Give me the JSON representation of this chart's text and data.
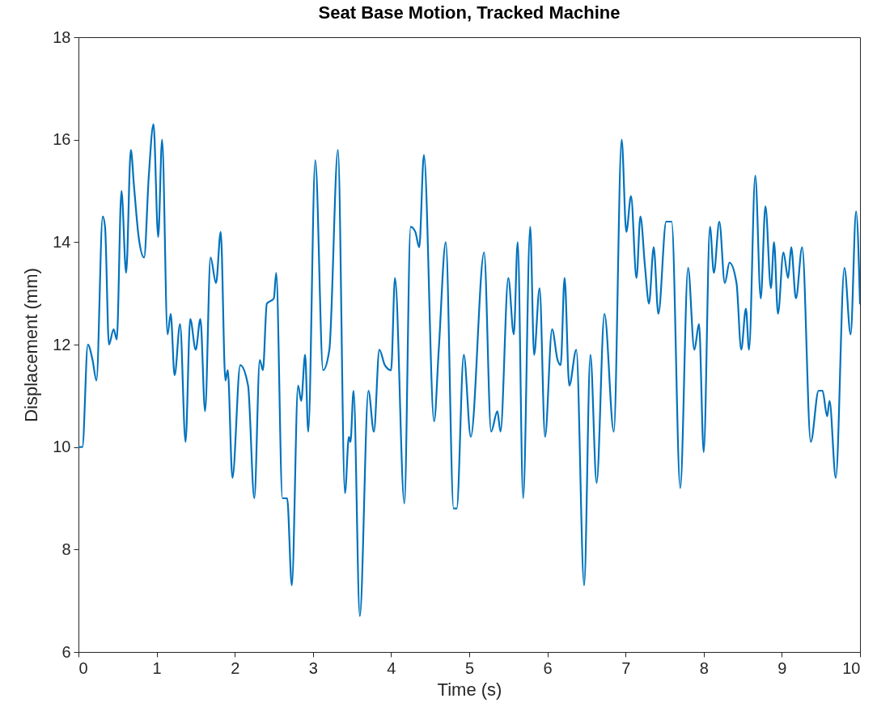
{
  "chart_data": {
    "type": "line",
    "title": "Seat Base Motion, Tracked Machine",
    "xlabel": "Time (s)",
    "ylabel": "Displacement (mm)",
    "xlim": [
      0,
      10
    ],
    "xticks": [
      0,
      1,
      2,
      3,
      4,
      5,
      6,
      7,
      8,
      9,
      10
    ],
    "ylim": [
      6,
      18
    ],
    "yticks": [
      6,
      8,
      10,
      12,
      14,
      16,
      18
    ],
    "grid": false,
    "marker": "none",
    "line_style": "solid",
    "series": [
      {
        "color": "#0072bd",
        "x": [
          0,
          0.05,
          0.12,
          0.18,
          0.23,
          0.31,
          0.34,
          0.39,
          0.45,
          0.49,
          0.55,
          0.61,
          0.67,
          0.71,
          0.77,
          0.84,
          0.9,
          0.96,
          1.02,
          1.07,
          1.14,
          1.18,
          1.23,
          1.3,
          1.37,
          1.43,
          1.5,
          1.56,
          1.62,
          1.69,
          1.76,
          1.82,
          1.88,
          1.91,
          1.97,
          2.07,
          2.17,
          2.25,
          2.32,
          2.36,
          2.41,
          2.5,
          2.53,
          2.61,
          2.67,
          2.73,
          2.81,
          2.85,
          2.9,
          2.94,
          3.03,
          3.13,
          3.21,
          3.32,
          3.41,
          3.46,
          3.48,
          3.52,
          3.6,
          3.71,
          3.78,
          3.85,
          3.92,
          4.0,
          4.05,
          4.17,
          4.25,
          4.31,
          4.36,
          4.42,
          4.55,
          4.61,
          4.7,
          4.8,
          4.84,
          4.93,
          5.02,
          5.19,
          5.28,
          5.36,
          5.4,
          5.5,
          5.57,
          5.62,
          5.69,
          5.78,
          5.83,
          5.9,
          5.97,
          6.06,
          6.13,
          6.17,
          6.22,
          6.28,
          6.37,
          6.47,
          6.55,
          6.63,
          6.73,
          6.85,
          6.95,
          7.01,
          7.07,
          7.14,
          7.19,
          7.25,
          7.3,
          7.36,
          7.42,
          7.52,
          7.59,
          7.7,
          7.8,
          7.88,
          7.94,
          8.0,
          8.08,
          8.13,
          8.2,
          8.27,
          8.33,
          8.42,
          8.48,
          8.54,
          8.58,
          8.66,
          8.73,
          8.79,
          8.86,
          8.9,
          8.95,
          9.02,
          9.08,
          9.12,
          9.18,
          9.26,
          9.37,
          9.47,
          9.52,
          9.58,
          9.61,
          9.69,
          9.8,
          9.88,
          9.95,
          10
        ],
        "values": [
          10.0,
          10.0,
          12.0,
          11.7,
          11.3,
          14.5,
          14.3,
          12.0,
          12.3,
          12.1,
          15.0,
          13.4,
          15.8,
          15.1,
          14.1,
          13.7,
          15.3,
          16.3,
          14.1,
          16.0,
          12.2,
          12.6,
          11.4,
          12.4,
          10.1,
          12.5,
          11.9,
          12.5,
          10.7,
          13.7,
          13.2,
          14.2,
          11.3,
          11.5,
          9.4,
          11.6,
          11.2,
          9.0,
          11.7,
          11.5,
          12.8,
          12.9,
          13.4,
          9.0,
          9.0,
          7.3,
          11.2,
          10.9,
          11.8,
          10.3,
          15.6,
          11.5,
          11.9,
          15.8,
          9.1,
          10.2,
          10.1,
          11.1,
          6.7,
          11.1,
          10.3,
          11.9,
          11.6,
          11.5,
          13.3,
          8.9,
          14.3,
          14.2,
          13.9,
          15.7,
          10.5,
          11.9,
          14.0,
          8.8,
          8.8,
          11.8,
          10.2,
          13.8,
          10.3,
          10.7,
          10.3,
          13.3,
          12.2,
          14.0,
          9.0,
          14.3,
          11.8,
          13.1,
          10.2,
          12.3,
          11.7,
          11.6,
          13.3,
          11.2,
          11.9,
          7.3,
          11.8,
          9.3,
          12.6,
          10.3,
          16.0,
          14.2,
          14.9,
          13.3,
          14.5,
          13.5,
          12.8,
          13.9,
          12.6,
          14.4,
          14.4,
          9.2,
          13.5,
          11.9,
          12.4,
          9.9,
          14.3,
          13.4,
          14.4,
          13.2,
          13.6,
          13.2,
          11.9,
          12.7,
          11.9,
          15.3,
          12.9,
          14.7,
          13.1,
          14.0,
          12.6,
          13.8,
          13.3,
          13.9,
          12.9,
          13.9,
          10.1,
          11.1,
          11.1,
          10.6,
          10.9,
          9.4,
          13.5,
          12.2,
          14.6,
          12.8
        ]
      }
    ]
  }
}
